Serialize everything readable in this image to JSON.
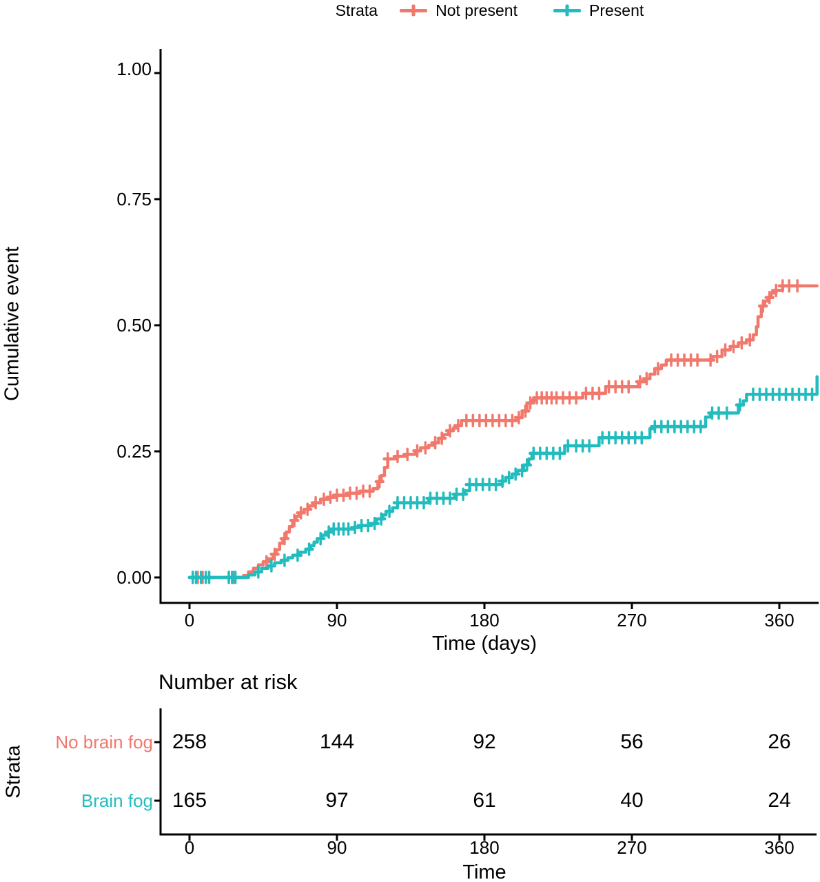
{
  "legend": {
    "title": "Strata",
    "items": [
      {
        "label": "Not present"
      },
      {
        "label": "Present"
      }
    ]
  },
  "colors": {
    "not_present": "#F1786C",
    "present": "#23BCBE",
    "axis": "#000000"
  },
  "risk_table": {
    "title": "Number at risk",
    "axis_title": "Time",
    "group_axis_title": "Strata",
    "rows": [
      {
        "label": "No brain fog",
        "counts": [
          "258",
          "144",
          "92",
          "56",
          "26"
        ]
      },
      {
        "label": "Brain fog",
        "counts": [
          "165",
          "97",
          "61",
          "40",
          "24"
        ]
      }
    ]
  },
  "chart_data": {
    "type": "line",
    "subtype": "kaplan-meier-cumulative-event-step-curves-with-censor-marks",
    "title": "",
    "xlabel": "Time (days)",
    "ylabel": "Cumulative event",
    "legend_position": "top",
    "grid": false,
    "xlim": [
      0,
      385
    ],
    "ylim": [
      0,
      1.0
    ],
    "x_ticks": [
      0,
      90,
      180,
      270,
      360
    ],
    "x_tick_labels": [
      "0",
      "90",
      "180",
      "270",
      "360"
    ],
    "y_ticks": [
      0,
      0.25,
      0.5,
      0.75,
      1.0
    ],
    "y_tick_labels": [
      "0.00",
      "0.25",
      "0.50",
      "0.75",
      "1.00"
    ],
    "series": [
      {
        "name": "Not present",
        "color": "#F1786C",
        "points": [
          [
            0,
            0
          ],
          [
            30,
            0
          ],
          [
            33,
            0.004
          ],
          [
            36,
            0.011
          ],
          [
            39,
            0.018
          ],
          [
            42,
            0.025
          ],
          [
            45,
            0.031
          ],
          [
            48,
            0.037
          ],
          [
            51,
            0.046
          ],
          [
            53,
            0.055
          ],
          [
            55,
            0.068
          ],
          [
            57,
            0.077
          ],
          [
            59,
            0.09
          ],
          [
            61,
            0.101
          ],
          [
            63,
            0.113
          ],
          [
            65,
            0.121
          ],
          [
            67,
            0.128
          ],
          [
            70,
            0.135
          ],
          [
            73,
            0.142
          ],
          [
            76,
            0.148
          ],
          [
            80,
            0.155
          ],
          [
            85,
            0.159
          ],
          [
            90,
            0.163
          ],
          [
            97,
            0.167
          ],
          [
            104,
            0.171
          ],
          [
            112,
            0.176
          ],
          [
            115,
            0.19
          ],
          [
            117,
            0.202
          ],
          [
            119,
            0.218
          ],
          [
            121,
            0.235
          ],
          [
            126,
            0.24
          ],
          [
            132,
            0.244
          ],
          [
            138,
            0.251
          ],
          [
            141,
            0.257
          ],
          [
            146,
            0.262
          ],
          [
            149,
            0.267
          ],
          [
            152,
            0.276
          ],
          [
            155,
            0.283
          ],
          [
            158,
            0.291
          ],
          [
            161,
            0.296
          ],
          [
            163,
            0.301
          ],
          [
            166,
            0.311
          ],
          [
            197,
            0.311
          ],
          [
            200,
            0.317
          ],
          [
            203,
            0.33
          ],
          [
            206,
            0.346
          ],
          [
            209,
            0.351
          ],
          [
            211,
            0.356
          ],
          [
            238,
            0.356
          ],
          [
            240,
            0.365
          ],
          [
            252,
            0.365
          ],
          [
            254,
            0.378
          ],
          [
            271,
            0.378
          ],
          [
            274,
            0.388
          ],
          [
            278,
            0.394
          ],
          [
            281,
            0.403
          ],
          [
            284,
            0.414
          ],
          [
            288,
            0.421
          ],
          [
            291,
            0.431
          ],
          [
            316,
            0.431
          ],
          [
            319,
            0.438
          ],
          [
            325,
            0.451
          ],
          [
            330,
            0.458
          ],
          [
            335,
            0.465
          ],
          [
            340,
            0.471
          ],
          [
            344,
            0.481
          ],
          [
            346,
            0.497
          ],
          [
            347,
            0.517
          ],
          [
            349,
            0.538
          ],
          [
            351,
            0.548
          ],
          [
            353,
            0.555
          ],
          [
            355,
            0.564
          ],
          [
            358,
            0.569
          ],
          [
            362,
            0.578
          ],
          [
            383,
            0.578
          ]
        ],
        "censor_days": [
          5,
          8,
          24,
          27,
          47,
          52,
          58,
          64,
          68,
          72,
          77,
          82,
          86,
          90,
          94,
          98,
          102,
          106,
          110,
          116,
          121,
          127,
          133,
          139,
          144,
          150,
          154,
          159,
          164,
          169,
          173,
          177,
          181,
          185,
          189,
          193,
          197,
          201,
          205,
          208,
          212,
          215,
          218,
          221,
          224,
          228,
          232,
          236,
          242,
          246,
          250,
          256,
          260,
          264,
          268,
          275,
          279,
          286,
          294,
          298,
          302,
          306,
          310,
          318,
          322,
          327,
          332,
          337,
          342,
          350,
          354,
          358,
          362,
          366,
          371
        ]
      },
      {
        "name": "Present",
        "color": "#23BCBE",
        "points": [
          [
            0,
            0
          ],
          [
            33,
            0
          ],
          [
            36,
            0.005
          ],
          [
            40,
            0.011
          ],
          [
            44,
            0.018
          ],
          [
            48,
            0.023
          ],
          [
            52,
            0.029
          ],
          [
            56,
            0.034
          ],
          [
            60,
            0.039
          ],
          [
            63,
            0.044
          ],
          [
            67,
            0.05
          ],
          [
            71,
            0.056
          ],
          [
            74,
            0.063
          ],
          [
            76,
            0.07
          ],
          [
            78,
            0.077
          ],
          [
            81,
            0.084
          ],
          [
            84,
            0.09
          ],
          [
            87,
            0.096
          ],
          [
            100,
            0.099
          ],
          [
            105,
            0.103
          ],
          [
            110,
            0.107
          ],
          [
            114,
            0.116
          ],
          [
            118,
            0.124
          ],
          [
            120,
            0.131
          ],
          [
            124,
            0.138
          ],
          [
            127,
            0.148
          ],
          [
            144,
            0.148
          ],
          [
            146,
            0.157
          ],
          [
            160,
            0.157
          ],
          [
            162,
            0.165
          ],
          [
            168,
            0.172
          ],
          [
            171,
            0.184
          ],
          [
            189,
            0.184
          ],
          [
            191,
            0.191
          ],
          [
            193,
            0.198
          ],
          [
            197,
            0.205
          ],
          [
            200,
            0.212
          ],
          [
            204,
            0.223
          ],
          [
            207,
            0.235
          ],
          [
            209,
            0.246
          ],
          [
            227,
            0.246
          ],
          [
            229,
            0.261
          ],
          [
            248,
            0.261
          ],
          [
            250,
            0.277
          ],
          [
            279,
            0.277
          ],
          [
            281,
            0.295
          ],
          [
            284,
            0.299
          ],
          [
            313,
            0.299
          ],
          [
            315,
            0.318
          ],
          [
            318,
            0.326
          ],
          [
            333,
            0.326
          ],
          [
            335,
            0.342
          ],
          [
            338,
            0.35
          ],
          [
            340,
            0.363
          ],
          [
            381,
            0.363
          ],
          [
            383,
            0.398
          ]
        ],
        "censor_days": [
          2,
          4,
          7,
          10,
          12,
          24,
          26,
          28,
          42,
          50,
          58,
          66,
          73,
          80,
          85,
          88,
          91,
          94,
          97,
          101,
          105,
          109,
          113,
          117,
          122,
          127,
          131,
          135,
          139,
          143,
          147,
          151,
          155,
          159,
          163,
          167,
          171,
          175,
          179,
          183,
          187,
          191,
          195,
          199,
          203,
          206,
          210,
          214,
          218,
          222,
          226,
          231,
          236,
          240,
          244,
          252,
          256,
          260,
          264,
          268,
          272,
          276,
          284,
          288,
          292,
          296,
          300,
          304,
          308,
          312,
          319,
          323,
          328,
          336,
          344,
          348,
          352,
          356,
          360,
          364,
          368,
          372,
          376,
          380
        ]
      }
    ],
    "number_at_risk_times": [
      0,
      90,
      180,
      270,
      360
    ]
  }
}
